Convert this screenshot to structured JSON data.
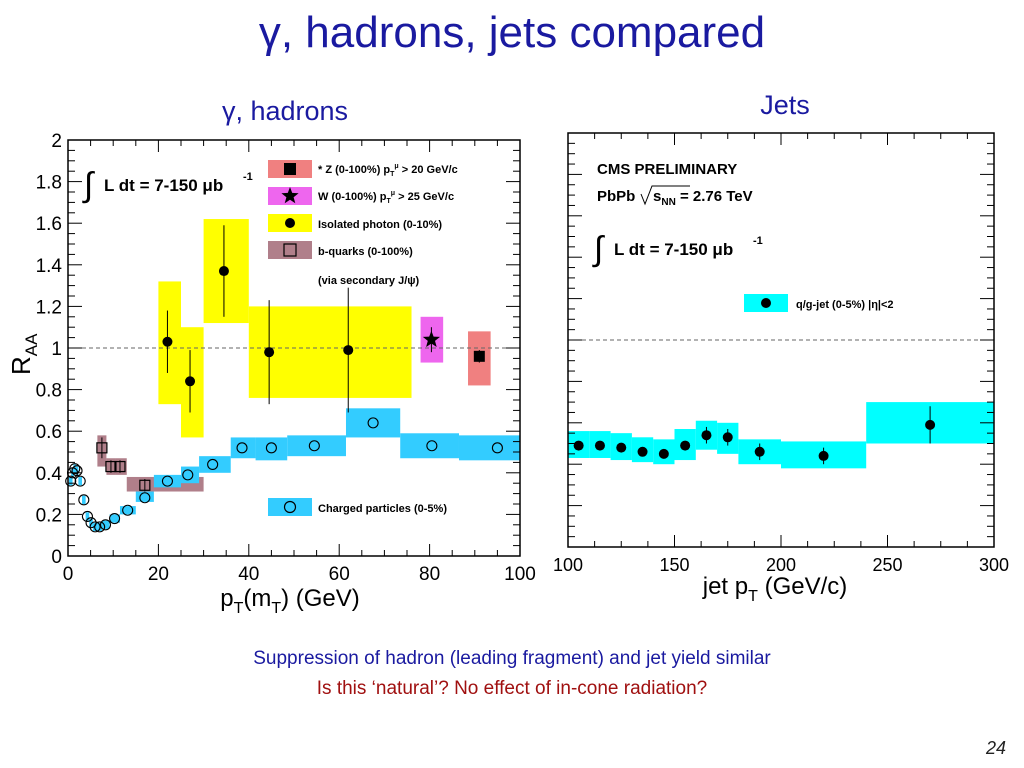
{
  "slide": {
    "title": "γ, hadrons, jets compared",
    "caption_1": "Suppression of hadron (leading fragment) and jet yield similar",
    "caption_2": "Is this ‘natural’? No effect of in-cone radiation?",
    "page_number": "24"
  },
  "colors": {
    "title_blue": "#1a1aa0",
    "caption_red": "#a01010",
    "z_band": "#f08080",
    "w_band": "#ee66ee",
    "photon_band": "#ffff00",
    "bquark_band": "#b07f8a",
    "charged_band": "#33ccff",
    "jet_band": "#00ffff"
  },
  "chart_data": [
    {
      "type": "scatter",
      "panel_title": "γ, hadrons",
      "xlabel": "pT(mT) (GeV)",
      "ylabel": "RAA",
      "xlim": [
        0,
        100
      ],
      "ylim": [
        0,
        2
      ],
      "xticks": [
        0,
        20,
        40,
        60,
        80,
        100
      ],
      "yticks": [
        0,
        0.2,
        0.4,
        0.6,
        0.8,
        1,
        1.2,
        1.4,
        1.6,
        1.8,
        2
      ],
      "reference_line": 1,
      "luminosity_label": "∫ L dt = 7-150 μb-1",
      "legend_note": "(via secondary J/ψ)",
      "series": [
        {
          "name": "* Z  (0-100%)  pTμ > 20 GeV/c",
          "marker": "filled-square",
          "color": "#f08080",
          "points": [
            {
              "x": 91,
              "y": 0.96,
              "err": 0.03,
              "band": [
                88.5,
                93.5,
                0.82,
                1.08
              ]
            }
          ]
        },
        {
          "name": "W  (0-100%)  pTμ > 25 GeV/c",
          "marker": "filled-star",
          "color": "#ee66ee",
          "points": [
            {
              "x": 80.4,
              "y": 1.04,
              "err": 0.06,
              "band": [
                78,
                83,
                0.93,
                1.15
              ]
            }
          ]
        },
        {
          "name": "Isolated photon  (0-10%)",
          "marker": "filled-circle",
          "color": "#ffff00",
          "points": [
            {
              "x": 22,
              "y": 1.03,
              "err": 0.15,
              "band": [
                20,
                25,
                0.73,
                1.32
              ]
            },
            {
              "x": 27,
              "y": 0.84,
              "err": 0.15,
              "band": [
                25,
                30,
                0.57,
                1.1
              ]
            },
            {
              "x": 34.5,
              "y": 1.37,
              "err": 0.22,
              "band": [
                30,
                40,
                1.12,
                1.62
              ]
            },
            {
              "x": 44.5,
              "y": 0.98,
              "err": 0.25,
              "band": [
                40,
                50,
                0.76,
                1.2
              ]
            },
            {
              "x": 62,
              "y": 0.99,
              "err": 0.3,
              "band": [
                50,
                76,
                0.76,
                1.2
              ]
            }
          ]
        },
        {
          "name": "b-quarks (0-100%)",
          "marker": "open-square",
          "color": "#b07f8a",
          "points": [
            {
              "x": 7.5,
              "y": 0.52,
              "err": 0.05,
              "band": [
                6.5,
                8.5,
                0.43,
                0.58
              ]
            },
            {
              "x": 9.5,
              "y": 0.43,
              "err": 0.03,
              "band": [
                8.5,
                10.5,
                0.39,
                0.47
              ]
            },
            {
              "x": 11.5,
              "y": 0.43,
              "err": 0.03,
              "band": [
                10.5,
                13,
                0.39,
                0.47
              ]
            },
            {
              "x": 17,
              "y": 0.34,
              "err": 0.03,
              "band": [
                13,
                30,
                0.31,
                0.38
              ]
            }
          ]
        },
        {
          "name": "Charged particles (0-5%)",
          "marker": "open-circle",
          "color": "#33ccff",
          "points": [
            {
              "x": 0.6,
              "y": 0.36,
              "band": [
                0.2,
                1.0,
                0.34,
                0.38
              ]
            },
            {
              "x": 1.0,
              "y": 0.4,
              "band": [
                0.7,
                1.3,
                0.38,
                0.42
              ]
            },
            {
              "x": 1.5,
              "y": 0.42,
              "band": [
                1.2,
                1.8,
                0.4,
                0.44
              ]
            },
            {
              "x": 2.0,
              "y": 0.41,
              "band": [
                1.7,
                2.3,
                0.39,
                0.43
              ]
            },
            {
              "x": 2.7,
              "y": 0.36,
              "band": [
                2.3,
                3.1,
                0.34,
                0.38
              ]
            },
            {
              "x": 3.5,
              "y": 0.27,
              "band": [
                3.1,
                3.9,
                0.25,
                0.29
              ]
            },
            {
              "x": 4.3,
              "y": 0.19,
              "band": [
                3.9,
                4.7,
                0.17,
                0.21
              ]
            },
            {
              "x": 5.1,
              "y": 0.16,
              "band": [
                4.7,
                5.5,
                0.14,
                0.18
              ]
            },
            {
              "x": 6.0,
              "y": 0.14,
              "band": [
                5.5,
                6.5,
                0.12,
                0.16
              ]
            },
            {
              "x": 7.0,
              "y": 0.14,
              "band": [
                6.5,
                7.5,
                0.12,
                0.16
              ]
            },
            {
              "x": 8.3,
              "y": 0.15,
              "band": [
                7.5,
                9.2,
                0.13,
                0.17
              ]
            },
            {
              "x": 10.3,
              "y": 0.18,
              "band": [
                9.2,
                11.5,
                0.16,
                0.2
              ]
            },
            {
              "x": 13.2,
              "y": 0.22,
              "band": [
                11.5,
                15,
                0.2,
                0.24
              ]
            },
            {
              "x": 17,
              "y": 0.28,
              "band": [
                15,
                19,
                0.26,
                0.31
              ]
            },
            {
              "x": 22,
              "y": 0.36,
              "band": [
                19,
                25,
                0.33,
                0.39
              ]
            },
            {
              "x": 26.5,
              "y": 0.39,
              "band": [
                25,
                29,
                0.35,
                0.43
              ]
            },
            {
              "x": 32,
              "y": 0.44,
              "band": [
                29,
                36,
                0.4,
                0.48
              ]
            },
            {
              "x": 38.5,
              "y": 0.52,
              "band": [
                36,
                41.5,
                0.47,
                0.57
              ]
            },
            {
              "x": 45,
              "y": 0.52,
              "band": [
                41.5,
                48.5,
                0.46,
                0.57
              ]
            },
            {
              "x": 54.5,
              "y": 0.53,
              "band": [
                48.5,
                61.5,
                0.48,
                0.58
              ]
            },
            {
              "x": 67.5,
              "y": 0.64,
              "band": [
                61.5,
                73.5,
                0.57,
                0.71
              ]
            },
            {
              "x": 80.5,
              "y": 0.53,
              "band": [
                73.5,
                86.5,
                0.47,
                0.59
              ]
            },
            {
              "x": 95,
              "y": 0.52,
              "band": [
                86.5,
                100,
                0.46,
                0.58
              ]
            }
          ]
        }
      ]
    },
    {
      "type": "scatter",
      "panel_title": "Jets",
      "xlabel": "jet pT (GeV/c)",
      "ylabel": "",
      "xlim": [
        100,
        300
      ],
      "ylim": [
        0,
        2
      ],
      "xticks": [
        100,
        150,
        200,
        250,
        300
      ],
      "reference_line": 1,
      "header_1": "CMS PRELIMINARY",
      "header_2": "PbPb √sNN = 2.76 TeV",
      "luminosity_label": "∫ L dt = 7-150 μb-1",
      "series": [
        {
          "name": "q/g-jet (0-5%)    |η|<2",
          "marker": "filled-circle",
          "color": "#00ffff",
          "points": [
            {
              "x": 105,
              "y": 0.49,
              "err": 0.02,
              "band": [
                100,
                110,
                0.43,
                0.56
              ]
            },
            {
              "x": 115,
              "y": 0.49,
              "err": 0.02,
              "band": [
                110,
                120,
                0.43,
                0.56
              ]
            },
            {
              "x": 125,
              "y": 0.48,
              "err": 0.02,
              "band": [
                120,
                130,
                0.42,
                0.55
              ]
            },
            {
              "x": 135,
              "y": 0.46,
              "err": 0.02,
              "band": [
                130,
                140,
                0.41,
                0.53
              ]
            },
            {
              "x": 145,
              "y": 0.45,
              "err": 0.02,
              "band": [
                140,
                150,
                0.4,
                0.52
              ]
            },
            {
              "x": 155,
              "y": 0.49,
              "err": 0.02,
              "band": [
                150,
                160,
                0.42,
                0.57
              ]
            },
            {
              "x": 165,
              "y": 0.54,
              "err": 0.04,
              "band": [
                160,
                170,
                0.47,
                0.61
              ]
            },
            {
              "x": 175,
              "y": 0.53,
              "err": 0.04,
              "band": [
                170,
                180,
                0.45,
                0.6
              ]
            },
            {
              "x": 190,
              "y": 0.46,
              "err": 0.04,
              "band": [
                180,
                200,
                0.4,
                0.52
              ]
            },
            {
              "x": 220,
              "y": 0.44,
              "err": 0.04,
              "band": [
                200,
                240,
                0.38,
                0.51
              ]
            },
            {
              "x": 270,
              "y": 0.59,
              "err": 0.09,
              "band": [
                240,
                300,
                0.5,
                0.7
              ]
            }
          ]
        }
      ]
    }
  ]
}
